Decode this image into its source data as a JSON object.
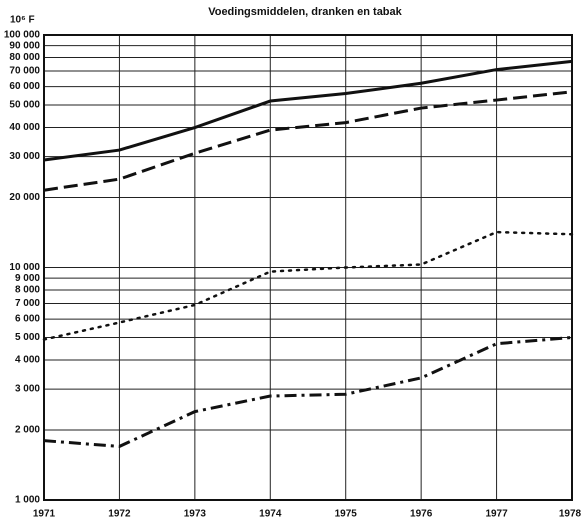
{
  "chart_data": {
    "type": "line",
    "title": "Voedingsmiddelen, dranken en tabak",
    "y_label": "10⁶ F",
    "log_y": true,
    "grid": true,
    "x": [
      1971,
      1972,
      1973,
      1974,
      1975,
      1976,
      1977,
      1978
    ],
    "xlim": [
      1971,
      1978
    ],
    "xticks": [
      1971,
      1972,
      1973,
      1974,
      1975,
      1976,
      1977,
      1978
    ],
    "ylim": [
      1000,
      100000
    ],
    "yticks": [
      {
        "value": 1000,
        "label": "1 000"
      },
      {
        "value": 2000,
        "label": "2 000"
      },
      {
        "value": 3000,
        "label": "3 000"
      },
      {
        "value": 4000,
        "label": "4 000"
      },
      {
        "value": 5000,
        "label": "5 000"
      },
      {
        "value": 6000,
        "label": "6 000"
      },
      {
        "value": 7000,
        "label": "7 000"
      },
      {
        "value": 8000,
        "label": "8 000"
      },
      {
        "value": 9000,
        "label": "9 000"
      },
      {
        "value": 10000,
        "label": "10 000"
      },
      {
        "value": 20000,
        "label": "20 000"
      },
      {
        "value": 30000,
        "label": "30 000"
      },
      {
        "value": 40000,
        "label": "40 000"
      },
      {
        "value": 50000,
        "label": "50 000"
      },
      {
        "value": 60000,
        "label": "60 000"
      },
      {
        "value": 70000,
        "label": "70 000"
      },
      {
        "value": 80000,
        "label": "80 000"
      },
      {
        "value": 90000,
        "label": "90 000"
      },
      {
        "value": 100000,
        "label": "100 000"
      }
    ],
    "series": [
      {
        "color": "#111111",
        "linestyle": "solid",
        "values": [
          29000,
          32000,
          40000,
          52000,
          56000,
          62000,
          71000,
          77000
        ]
      },
      {
        "color": "#111111",
        "linestyle": "dashed",
        "values": [
          21500,
          24000,
          31000,
          39000,
          42000,
          48500,
          52500,
          57000
        ]
      },
      {
        "color": "#111111",
        "linestyle": "dotted",
        "values": [
          4900,
          5800,
          6900,
          9600,
          10000,
          10300,
          14200,
          13900
        ]
      },
      {
        "color": "#111111",
        "linestyle": "dashdot",
        "values": [
          1800,
          1700,
          2400,
          2800,
          2850,
          3350,
          4700,
          5000
        ]
      }
    ]
  }
}
